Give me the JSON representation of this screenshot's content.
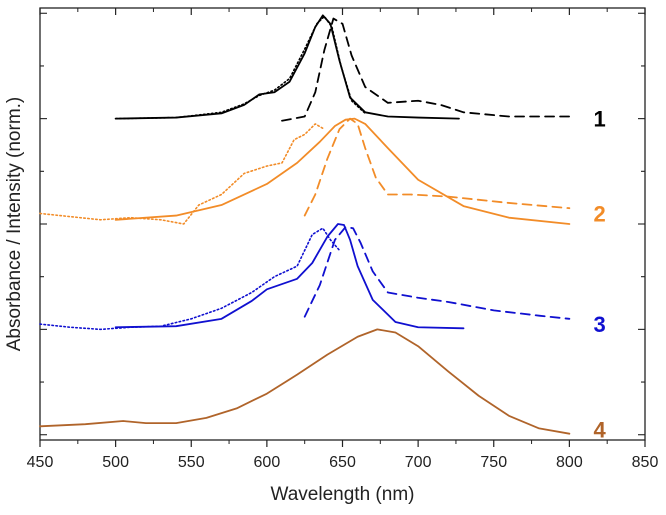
{
  "chart_data": {
    "type": "line",
    "title": "",
    "xlabel": "Wavelength (nm)",
    "ylabel": "Absorbance / Intensity (norm.)",
    "xlim": [
      450,
      850
    ],
    "ylim": [
      -0.05,
      4.05
    ],
    "xticks": [
      450,
      500,
      550,
      600,
      650,
      700,
      750,
      800,
      850
    ],
    "xtick_labels": [
      "450",
      "500",
      "550",
      "600",
      "650",
      "700",
      "750",
      "800",
      "850"
    ],
    "grid": false,
    "legend": "none",
    "colors": {
      "sample1": "#000000",
      "sample2": "#f28c28",
      "sample3": "#1010d0",
      "sample4": "#b0642a",
      "axis": "#222222"
    },
    "line_styles": {
      "solid": "absorbance",
      "dotted": "measured",
      "dashed": "emission"
    },
    "series_labels": [
      {
        "id": "1",
        "text": "1",
        "x": 820,
        "y": 3.0,
        "color": "#000000"
      },
      {
        "id": "2",
        "text": "2",
        "x": 820,
        "y": 2.1,
        "color": "#f28c28"
      },
      {
        "id": "3",
        "text": "3",
        "x": 820,
        "y": 1.05,
        "color": "#1010d0"
      },
      {
        "id": "4",
        "text": "4",
        "x": 820,
        "y": 0.05,
        "color": "#b0642a"
      }
    ],
    "series": [
      {
        "name": "1-solid",
        "group": "1",
        "style": "solid",
        "color": "#000000",
        "x": [
          500,
          540,
          570,
          585,
          595,
          605,
          615,
          625,
          632,
          637,
          642,
          648,
          655,
          665,
          680,
          700,
          727
        ],
        "y": [
          3.0,
          3.01,
          3.05,
          3.13,
          3.23,
          3.25,
          3.35,
          3.62,
          3.87,
          3.98,
          3.9,
          3.55,
          3.2,
          3.06,
          3.02,
          3.01,
          3.0
        ]
      },
      {
        "name": "1-dotted",
        "group": "1",
        "style": "dotted",
        "color": "#000000",
        "x": [
          500,
          540,
          570,
          585,
          595,
          605,
          615,
          625,
          633,
          638,
          643,
          649,
          656,
          665
        ],
        "y": [
          3.0,
          3.01,
          3.06,
          3.14,
          3.22,
          3.27,
          3.38,
          3.66,
          3.9,
          3.97,
          3.87,
          3.5,
          3.17,
          3.05
        ]
      },
      {
        "name": "1-dashed",
        "group": "1",
        "style": "dashed",
        "color": "#000000",
        "x": [
          610,
          625,
          632,
          638,
          644,
          650,
          656,
          665,
          680,
          700,
          715,
          730,
          760,
          800
        ],
        "y": [
          2.98,
          3.02,
          3.25,
          3.65,
          3.95,
          3.9,
          3.6,
          3.3,
          3.15,
          3.17,
          3.13,
          3.06,
          3.02,
          3.02
        ]
      },
      {
        "name": "2-solid",
        "group": "2",
        "style": "solid",
        "color": "#f28c28",
        "x": [
          500,
          540,
          570,
          600,
          620,
          635,
          645,
          652,
          658,
          665,
          680,
          700,
          730,
          760,
          800
        ],
        "y": [
          2.04,
          2.08,
          2.18,
          2.38,
          2.58,
          2.78,
          2.93,
          2.99,
          3.0,
          2.95,
          2.72,
          2.42,
          2.17,
          2.06,
          2.0
        ]
      },
      {
        "name": "2-dotted",
        "group": "2",
        "style": "dotted",
        "color": "#f28c28",
        "x": [
          450,
          470,
          490,
          510,
          530,
          545,
          555,
          570,
          585,
          600,
          610,
          618,
          625,
          632,
          638
        ],
        "y": [
          2.1,
          2.07,
          2.04,
          2.06,
          2.04,
          2.0,
          2.18,
          2.28,
          2.48,
          2.55,
          2.58,
          2.8,
          2.85,
          2.95,
          2.9
        ]
      },
      {
        "name": "2-dashed",
        "group": "2",
        "style": "dashed",
        "color": "#f28c28",
        "x": [
          625,
          632,
          640,
          648,
          655,
          660,
          665,
          672,
          680,
          695,
          720,
          760,
          800
        ],
        "y": [
          2.08,
          2.28,
          2.62,
          2.9,
          3.0,
          2.95,
          2.72,
          2.44,
          2.28,
          2.28,
          2.26,
          2.2,
          2.15
        ]
      },
      {
        "name": "3-solid",
        "group": "3",
        "style": "solid",
        "color": "#1010d0",
        "x": [
          500,
          540,
          570,
          590,
          600,
          610,
          620,
          630,
          640,
          647,
          651,
          655,
          660,
          670,
          685,
          700,
          730
        ],
        "y": [
          1.02,
          1.03,
          1.1,
          1.27,
          1.38,
          1.43,
          1.48,
          1.63,
          1.88,
          2.0,
          1.99,
          1.85,
          1.6,
          1.28,
          1.07,
          1.02,
          1.01
        ]
      },
      {
        "name": "3-dotted",
        "group": "3",
        "style": "dotted",
        "color": "#1010d0",
        "x": [
          450,
          470,
          490,
          510,
          530,
          550,
          570,
          590,
          605,
          620,
          630,
          637,
          642,
          648
        ],
        "y": [
          1.05,
          1.02,
          1.0,
          1.02,
          1.03,
          1.1,
          1.2,
          1.35,
          1.5,
          1.6,
          1.9,
          1.96,
          1.85,
          1.75
        ]
      },
      {
        "name": "3-dashed",
        "group": "3",
        "style": "dashed",
        "color": "#1010d0",
        "x": [
          625,
          635,
          645,
          652,
          657,
          662,
          670,
          680,
          700,
          720,
          750,
          780,
          800
        ],
        "y": [
          1.12,
          1.42,
          1.85,
          1.97,
          1.96,
          1.82,
          1.55,
          1.35,
          1.3,
          1.26,
          1.18,
          1.13,
          1.1
        ]
      },
      {
        "name": "4-solid",
        "group": "4",
        "style": "solid",
        "color": "#b0642a",
        "x": [
          450,
          480,
          505,
          520,
          540,
          560,
          580,
          600,
          620,
          640,
          660,
          673,
          685,
          700,
          720,
          740,
          760,
          780,
          800
        ],
        "y": [
          0.08,
          0.1,
          0.13,
          0.11,
          0.11,
          0.16,
          0.25,
          0.39,
          0.57,
          0.76,
          0.93,
          1.0,
          0.97,
          0.84,
          0.6,
          0.37,
          0.18,
          0.06,
          0.01
        ]
      }
    ]
  }
}
